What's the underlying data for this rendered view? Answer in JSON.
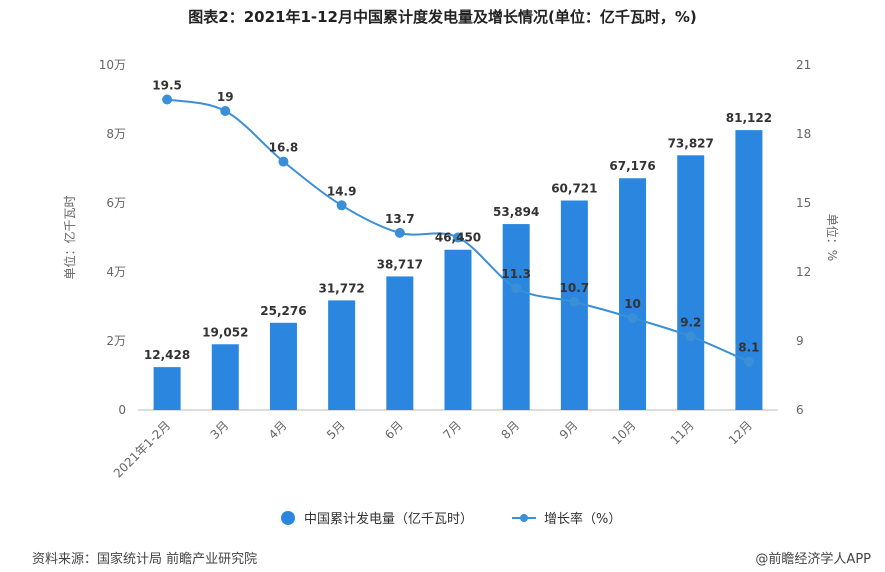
{
  "title": "图表2：2021年1-12月中国累计度发电量及增长情况(单位：亿千瓦时，%)",
  "source": "资料来源：国家统计局 前瞻产业研究院",
  "credit": "@前瞻经济学人APP",
  "colors": {
    "bar": "#2a86de",
    "line": "#3a8fd6",
    "axis": "#666666",
    "grid": "#dddddd"
  },
  "chart_data": {
    "type": "bar",
    "categories": [
      "2021年1-2月",
      "3月",
      "4月",
      "5月",
      "6月",
      "7月",
      "8月",
      "9月",
      "10月",
      "11月",
      "12月"
    ],
    "series": [
      {
        "name": "中国累计发电量（亿千瓦时）",
        "type": "bar",
        "axis": "left",
        "values": [
          12428,
          19052,
          25276,
          31772,
          38717,
          46450,
          53894,
          60721,
          67176,
          73827,
          81122
        ],
        "labels": [
          "12,428",
          "19,052",
          "25,276",
          "31,772",
          "38,717",
          "46,450",
          "53,894",
          "60,721",
          "67,176",
          "73,827",
          "81,122"
        ]
      },
      {
        "name": "增长率（%）",
        "type": "line",
        "axis": "right",
        "values": [
          19.5,
          19,
          16.8,
          14.9,
          13.7,
          13.5,
          11.3,
          10.7,
          10,
          9.2,
          8.1
        ],
        "labels": [
          "19.5",
          "19",
          "16.8",
          "14.9",
          "13.7",
          "",
          "11.3",
          "10.7",
          "10",
          "9.2",
          "8.1"
        ]
      }
    ],
    "ylabel_left": "单位：亿千瓦时",
    "ylabel_right": "单位：%",
    "ylim_left": [
      0,
      100000
    ],
    "yticks_left": [
      "0",
      "2万",
      "4万",
      "6万",
      "8万",
      "10万"
    ],
    "ylim_right": [
      6,
      21
    ],
    "yticks_right": [
      "6",
      "9",
      "12",
      "15",
      "18",
      "21"
    ],
    "legend_position": "bottom-center"
  }
}
